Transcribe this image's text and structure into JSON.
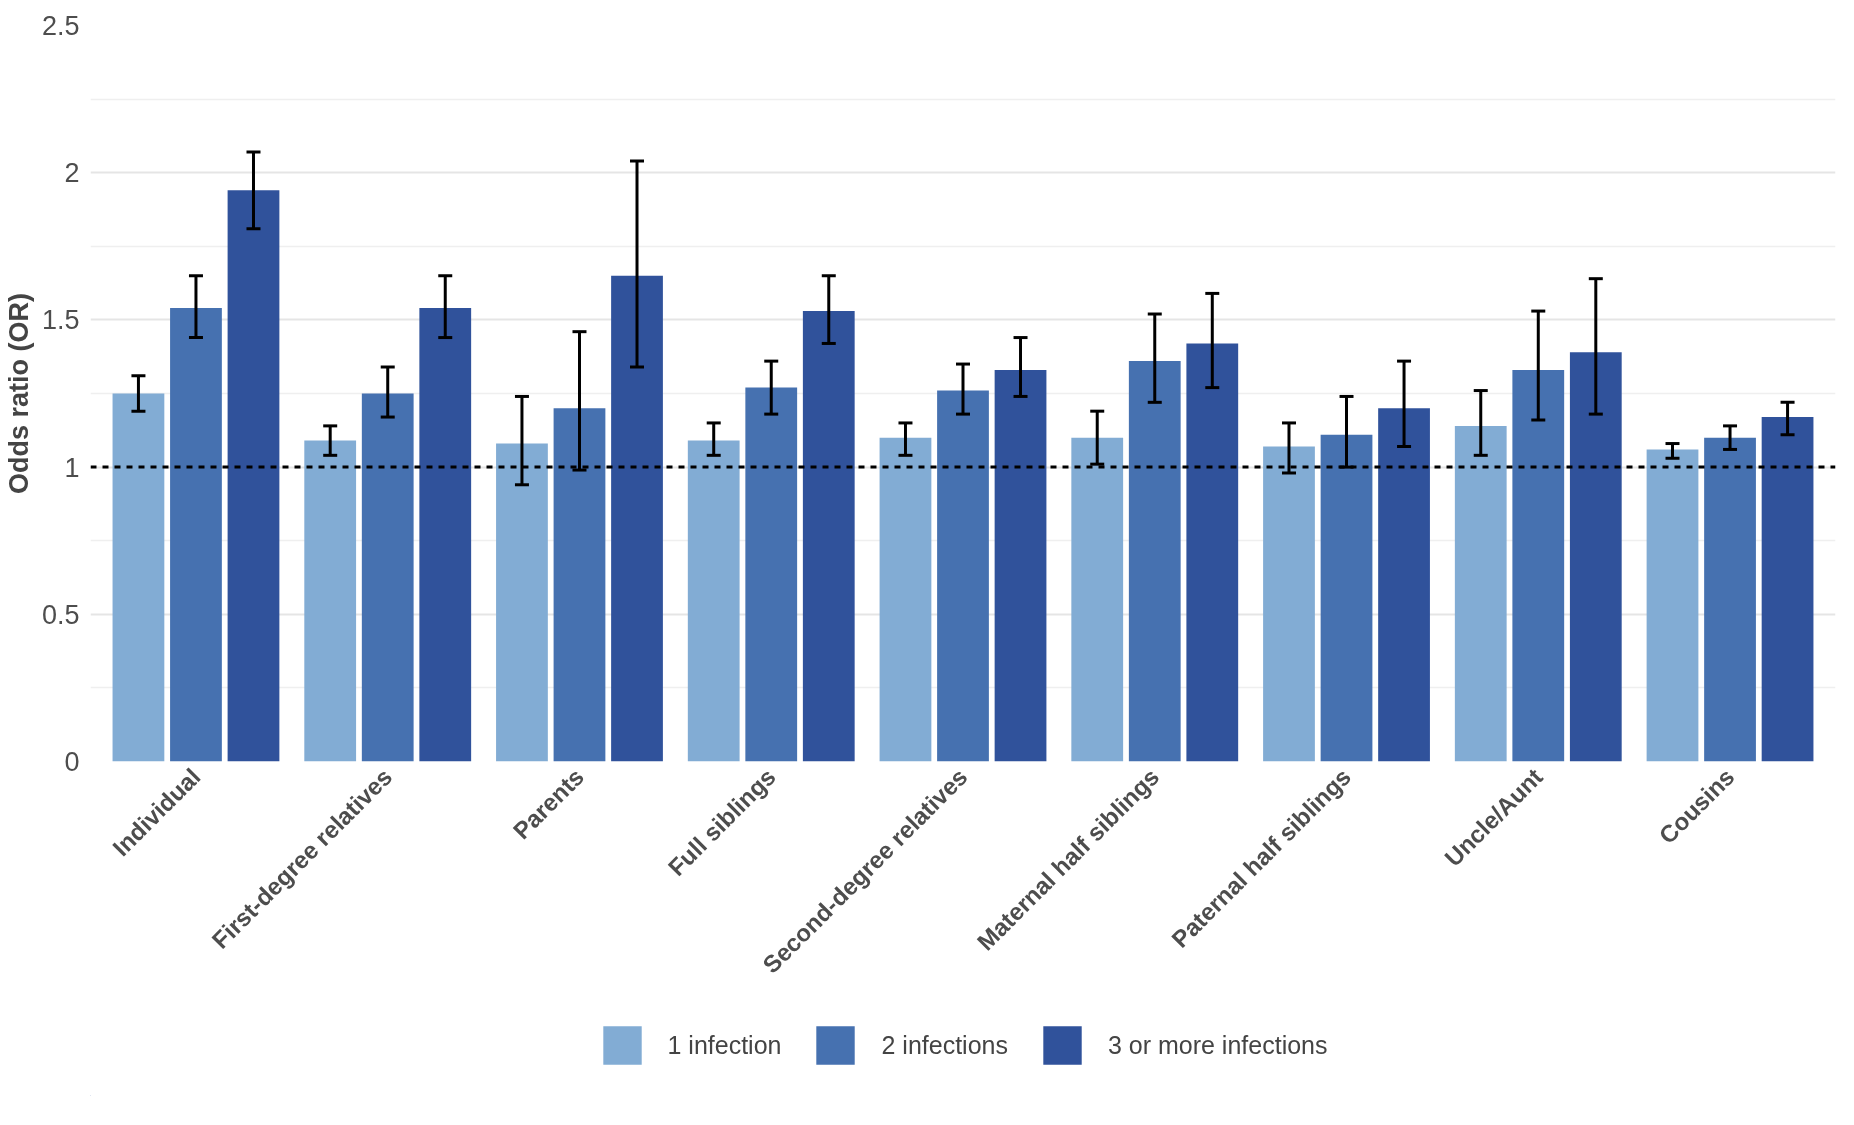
{
  "chart_data": {
    "type": "bar",
    "ylabel": "Odds ratio (OR)",
    "categories": [
      "Individual",
      "First-degree relatives",
      "Parents",
      "Full siblings",
      "Second-degree relatives",
      "Maternal half siblings",
      "Paternal half siblings",
      "Uncle/Aunt",
      "Cousins"
    ],
    "series": [
      {
        "name": "1 infection",
        "color": "#82acd4",
        "values": [
          1.25,
          1.09,
          1.08,
          1.09,
          1.1,
          1.1,
          1.07,
          1.14,
          1.06
        ],
        "errors": [
          [
            1.19,
            1.31
          ],
          [
            1.04,
            1.14
          ],
          [
            0.94,
            1.24
          ],
          [
            1.04,
            1.15
          ],
          [
            1.04,
            1.15
          ],
          [
            1.01,
            1.19
          ],
          [
            0.98,
            1.15
          ],
          [
            1.04,
            1.26
          ],
          [
            1.03,
            1.08
          ]
        ]
      },
      {
        "name": "2 infections",
        "color": "#4671b0",
        "values": [
          1.54,
          1.25,
          1.2,
          1.27,
          1.26,
          1.36,
          1.11,
          1.33,
          1.1
        ],
        "errors": [
          [
            1.44,
            1.65
          ],
          [
            1.17,
            1.34
          ],
          [
            0.99,
            1.46
          ],
          [
            1.18,
            1.36
          ],
          [
            1.18,
            1.35
          ],
          [
            1.22,
            1.52
          ],
          [
            1.0,
            1.24
          ],
          [
            1.16,
            1.53
          ],
          [
            1.06,
            1.14
          ]
        ]
      },
      {
        "name": "3 or more infections",
        "color": "#30529b",
        "values": [
          1.94,
          1.54,
          1.65,
          1.53,
          1.33,
          1.42,
          1.2,
          1.39,
          1.17
        ],
        "errors": [
          [
            1.81,
            2.07
          ],
          [
            1.44,
            1.65
          ],
          [
            1.34,
            2.04
          ],
          [
            1.42,
            1.65
          ],
          [
            1.24,
            1.44
          ],
          [
            1.27,
            1.59
          ],
          [
            1.07,
            1.36
          ],
          [
            1.18,
            1.64
          ],
          [
            1.11,
            1.22
          ]
        ]
      }
    ],
    "ylim": [
      0,
      2.5
    ],
    "yticks": [
      0,
      0.5,
      1,
      1.5,
      2,
      2.5
    ],
    "ref_lines": [
      {
        "axis": "y",
        "value": 1,
        "color": "#000000",
        "line_style": "dashed"
      }
    ],
    "grid": "y",
    "legend": "bottom"
  }
}
